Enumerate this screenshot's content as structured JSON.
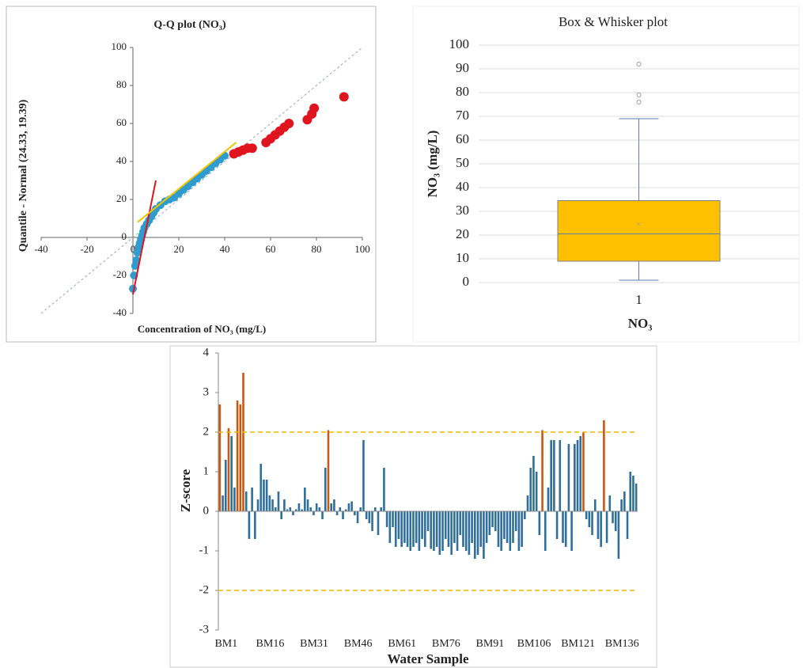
{
  "chart_data": [
    {
      "type": "scatter",
      "title": "Q-Q plot (NO₃)",
      "x_label": "Concentration of NO₃ (mg/L)",
      "y_label": "Quantile - Normal (24.33, 19.39)",
      "xlim": [
        -40,
        100
      ],
      "ylim": [
        -40,
        100
      ],
      "xticks": [
        -40,
        -20,
        0,
        20,
        40,
        60,
        80,
        100
      ],
      "yticks": [
        -40,
        -20,
        0,
        20,
        40,
        60,
        80,
        100
      ],
      "points": {
        "color": "#2e9ccf",
        "x": [
          0,
          0.5,
          1,
          1.5,
          2,
          2.5,
          3,
          3.5,
          4,
          4.5,
          5,
          6,
          7,
          8,
          9,
          10,
          12,
          14,
          16,
          18,
          20,
          22,
          24,
          26,
          28,
          30,
          32,
          34,
          36,
          38,
          40
        ],
        "y": [
          -27,
          -20,
          -15,
          -12,
          -8,
          -5,
          -3,
          -1,
          1,
          3,
          5,
          7,
          9,
          11,
          13,
          15,
          17,
          19,
          20,
          21,
          23,
          25,
          27,
          29,
          31,
          33,
          35,
          37,
          39,
          41,
          43
        ]
      },
      "outliers": {
        "color": "#e0141e",
        "x": [
          44,
          46,
          48,
          50,
          52,
          58,
          60,
          62,
          64,
          66,
          68,
          76,
          78,
          79,
          92
        ],
        "y": [
          44,
          45,
          46,
          47,
          47,
          50,
          52,
          54,
          56,
          58,
          60,
          62,
          65,
          68,
          74
        ]
      },
      "reference_lines": [
        {
          "color": "#9aa7b8",
          "dash": true,
          "x": [
            -40,
            100
          ],
          "y": [
            -40,
            100
          ]
        },
        {
          "color": "#e0141e",
          "dash": false,
          "x": [
            0,
            10
          ],
          "y": [
            -30,
            30
          ]
        },
        {
          "color": "#f2c300",
          "dash": false,
          "x": [
            2,
            45
          ],
          "y": [
            8,
            50
          ]
        }
      ]
    },
    {
      "type": "box",
      "title": "Box & Whisker plot",
      "y_label": "NO₃ (mg/L)",
      "x_label": "NO₃",
      "categories": [
        "1"
      ],
      "ylim": [
        0,
        100
      ],
      "yticks": [
        0,
        10,
        20,
        30,
        40,
        50,
        60,
        70,
        80,
        90,
        100
      ],
      "grid": true,
      "color": "#ffc000",
      "box": {
        "min": 1,
        "q1": 9,
        "median": 20.5,
        "q3": 34.5,
        "max": 69,
        "mean": 24.33,
        "outliers": [
          76,
          79,
          92
        ]
      }
    },
    {
      "type": "bar",
      "y_label": "Z-score",
      "x_label": "Water Sample",
      "ylim": [
        -3,
        4
      ],
      "yticks": [
        -3,
        -2,
        -1,
        0,
        1,
        2,
        3,
        4
      ],
      "color": "#2f6f99",
      "highlight_color": "#c55a11",
      "reference_lines": [
        2,
        -2
      ],
      "reference_color": "#f2b800",
      "categories": [
        "BM1",
        null,
        null,
        null,
        null,
        null,
        null,
        null,
        null,
        null,
        null,
        null,
        null,
        null,
        null,
        "BM16",
        null,
        null,
        null,
        null,
        null,
        null,
        null,
        null,
        null,
        null,
        null,
        null,
        null,
        null,
        "BM31",
        null,
        null,
        null,
        null,
        null,
        null,
        null,
        null,
        null,
        null,
        null,
        null,
        null,
        null,
        "BM46",
        null,
        null,
        null,
        null,
        null,
        null,
        null,
        null,
        null,
        null,
        null,
        null,
        null,
        null,
        "BM61",
        null,
        null,
        null,
        null,
        null,
        null,
        null,
        null,
        null,
        null,
        null,
        null,
        null,
        null,
        "BM76",
        null,
        null,
        null,
        null,
        null,
        null,
        null,
        null,
        null,
        null,
        null,
        null,
        null,
        null,
        "BM91",
        null,
        null,
        null,
        null,
        null,
        null,
        null,
        null,
        null,
        null,
        null,
        null,
        null,
        null,
        "BM106",
        null,
        null,
        null,
        null,
        null,
        null,
        null,
        null,
        null,
        null,
        null,
        null,
        null,
        null,
        "BM121",
        null,
        null,
        null,
        null,
        null,
        null,
        null,
        null,
        null,
        null,
        null,
        null,
        null,
        null,
        "BM136",
        null,
        null,
        null,
        null,
        null,
        null,
        null
      ],
      "values": [
        2.7,
        0.4,
        1.3,
        2.1,
        1.9,
        0.6,
        2.8,
        2.7,
        3.5,
        0.5,
        -0.7,
        0.6,
        -0.7,
        0.3,
        1.2,
        0.8,
        0.8,
        0.4,
        0.3,
        0.1,
        0.5,
        -0.2,
        0.3,
        0.05,
        0.1,
        -0.1,
        0.05,
        0.2,
        0.05,
        0.6,
        0.3,
        0.1,
        -0.1,
        0.2,
        0.1,
        -0.2,
        1.1,
        2.05,
        0.2,
        0.3,
        -0.1,
        0.1,
        -0.2,
        0.05,
        0.2,
        0.25,
        -0.1,
        -0.3,
        0.1,
        1.8,
        -0.2,
        -0.3,
        -0.5,
        0.1,
        -0.6,
        0.1,
        1.1,
        -0.4,
        -0.8,
        -0.4,
        -0.9,
        -0.7,
        -0.9,
        -0.8,
        -0.9,
        -1.0,
        -0.9,
        -0.8,
        -1.0,
        -0.7,
        -0.9,
        -0.5,
        -0.95,
        -1.0,
        -0.9,
        -1.1,
        -1.0,
        -0.7,
        -0.9,
        -1.1,
        -0.8,
        -1.0,
        -0.6,
        -0.9,
        -1.0,
        -1.1,
        -0.8,
        -1.2,
        -1.1,
        -0.9,
        -1.2,
        -0.8,
        -0.6,
        -0.4,
        -0.5,
        -0.9,
        -1.0,
        -0.7,
        -0.8,
        -1.0,
        -0.8,
        -0.5,
        -1.0,
        -0.9,
        -0.2,
        0.4,
        1.1,
        1.4,
        1.0,
        -0.6,
        2.05,
        -1.0,
        0.6,
        1.8,
        1.8,
        -0.7,
        1.8,
        -0.8,
        -0.9,
        1.7,
        -1.0,
        1.7,
        1.8,
        1.9,
        2.0,
        -0.2,
        -0.4,
        -0.6,
        0.3,
        -0.7,
        -0.9,
        2.3,
        -0.8,
        0.4,
        -0.3,
        -0.5,
        -1.2,
        0.3,
        0.5,
        -0.7,
        1.0,
        0.9,
        0.7
      ]
    }
  ]
}
